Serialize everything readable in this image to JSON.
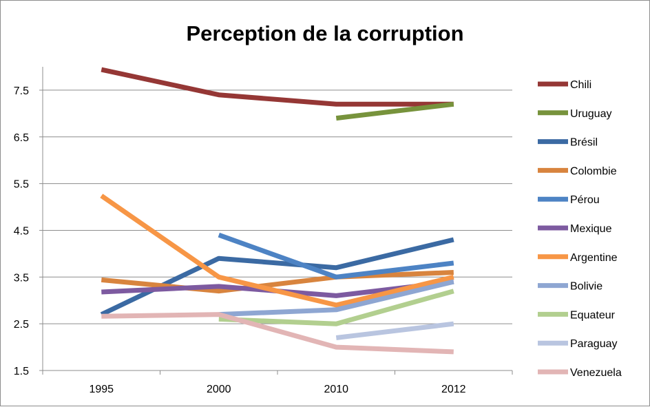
{
  "chart_data": {
    "type": "line",
    "title": "Perception de la corruption",
    "xlabel": "",
    "ylabel": "",
    "categories": [
      "1995",
      "2000",
      "2010",
      "2012"
    ],
    "ylim": [
      1.5,
      8.0
    ],
    "y_ticks": [
      "1.5",
      "2.5",
      "3.5",
      "4.5",
      "5.5",
      "6.5",
      "7.5"
    ],
    "y_tick_values": [
      1.5,
      2.5,
      3.5,
      4.5,
      5.5,
      6.5,
      7.5
    ],
    "grid": "horizontal",
    "legend_position": "right",
    "series": [
      {
        "name": "Chili",
        "color": "#953735",
        "values": [
          7.94,
          7.4,
          7.2,
          7.2
        ]
      },
      {
        "name": "Uruguay",
        "color": "#77933c",
        "values": [
          null,
          null,
          6.9,
          7.2
        ]
      },
      {
        "name": "Brésil",
        "color": "#3b6aa3",
        "values": [
          2.7,
          3.9,
          3.7,
          4.3
        ]
      },
      {
        "name": "Colombie",
        "color": "#d8843e",
        "values": [
          3.44,
          3.2,
          3.5,
          3.6
        ]
      },
      {
        "name": "Pérou",
        "color": "#4d83c4",
        "values": [
          null,
          4.4,
          3.5,
          3.8
        ]
      },
      {
        "name": "Mexique",
        "color": "#7d5aa0",
        "values": [
          3.18,
          3.3,
          3.1,
          3.4
        ]
      },
      {
        "name": "Argentine",
        "color": "#f79646",
        "values": [
          5.24,
          3.5,
          2.9,
          3.5
        ]
      },
      {
        "name": "Bolivie",
        "color": "#8ea6d2",
        "values": [
          null,
          2.7,
          2.8,
          3.4
        ]
      },
      {
        "name": "Equateur",
        "color": "#b2cf8f",
        "values": [
          null,
          2.6,
          2.5,
          3.2
        ]
      },
      {
        "name": "Paraguay",
        "color": "#b9c5e0",
        "values": [
          null,
          null,
          2.2,
          2.5
        ]
      },
      {
        "name": "Venezuela",
        "color": "#e2b5b5",
        "values": [
          2.66,
          2.7,
          2.0,
          1.9
        ]
      }
    ]
  }
}
